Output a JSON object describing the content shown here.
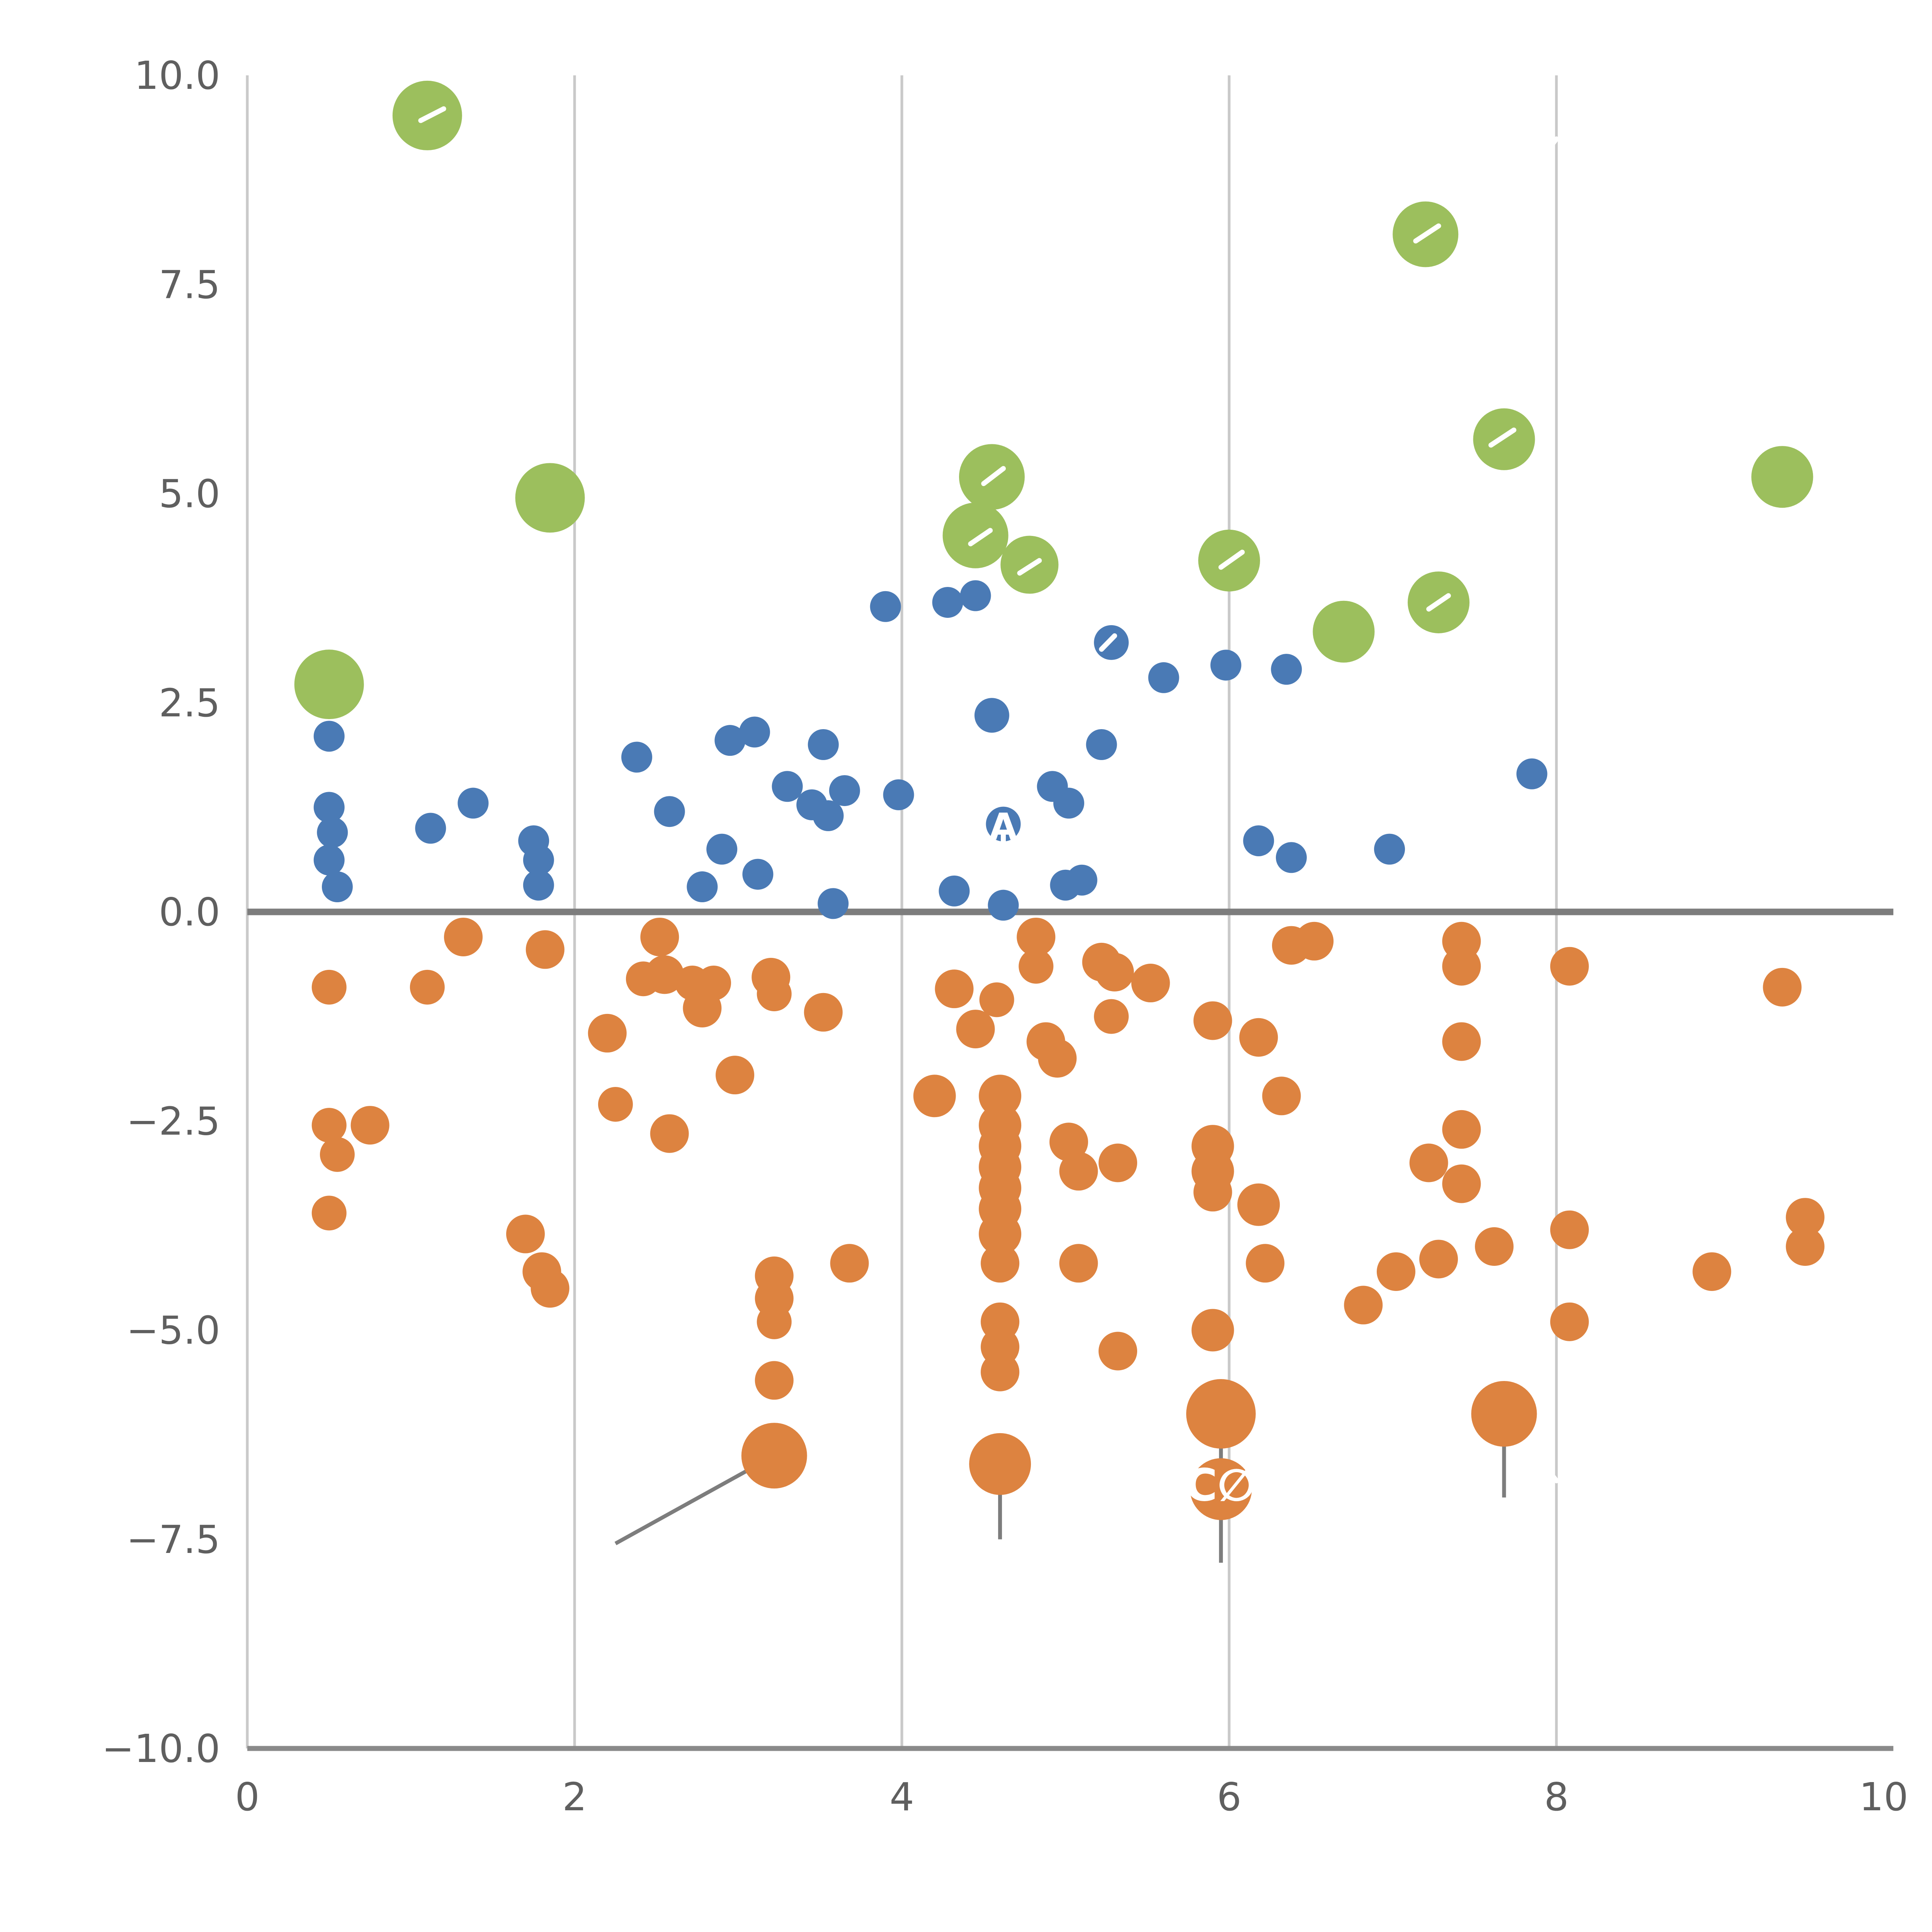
{
  "figure": {
    "background": "#ffffff"
  },
  "chart_data": {
    "type": "scatter",
    "title": "",
    "xlabel": "",
    "ylabel": "",
    "xlim": [
      0,
      10
    ],
    "ylim": [
      -10,
      10
    ],
    "grid": {
      "vertical_x": [
        2,
        4,
        6,
        8
      ],
      "color": "#c9c9c9",
      "left_spine_color": "#c9c9c9",
      "axis_color": "#8a8a8a",
      "tick_label_color": "#5f5f5f"
    },
    "zero_line": {
      "y": 0,
      "color": "#7d7d7d"
    },
    "x_ticks": [
      {
        "value": 0,
        "label": "0"
      },
      {
        "value": 2,
        "label": "2"
      },
      {
        "value": 4,
        "label": "4"
      },
      {
        "value": 6,
        "label": "6"
      },
      {
        "value": 8,
        "label": "8"
      },
      {
        "value": 10,
        "label": "10"
      }
    ],
    "y_ticks": [
      {
        "value": 10,
        "label": "10.0"
      },
      {
        "value": 7.5,
        "label": "7.5"
      },
      {
        "value": 5,
        "label": "5.0"
      },
      {
        "value": 2.5,
        "label": "2.5"
      },
      {
        "value": 0,
        "label": "0.0"
      },
      {
        "value": -2.5,
        "label": "−2.5"
      },
      {
        "value": -5,
        "label": "−5.0"
      },
      {
        "value": -7.5,
        "label": "−7.5"
      },
      {
        "value": -10,
        "label": "−10.0"
      }
    ],
    "series": [
      {
        "name": "green-bubbles",
        "color": "#9cbf5d",
        "points": [
          [
            1.1,
            9.52,
            18
          ],
          [
            1.85,
            4.95,
            18
          ],
          [
            0.5,
            2.72,
            18
          ],
          [
            4.55,
            5.2,
            17
          ],
          [
            4.45,
            4.5,
            17
          ],
          [
            4.78,
            4.15,
            15
          ],
          [
            6.0,
            4.2,
            16
          ],
          [
            6.7,
            3.35,
            16
          ],
          [
            7.2,
            8.1,
            17
          ],
          [
            7.28,
            3.7,
            16
          ],
          [
            7.68,
            5.65,
            16
          ],
          [
            9.38,
            5.2,
            16
          ]
        ]
      },
      {
        "name": "blue-dots",
        "color": "#4a7ab5",
        "points": [
          [
            0.5,
            2.1,
            8
          ],
          [
            0.5,
            1.25,
            8
          ],
          [
            0.52,
            0.95,
            8
          ],
          [
            0.5,
            0.62,
            8
          ],
          [
            0.55,
            0.3,
            8
          ],
          [
            1.12,
            1.0,
            8
          ],
          [
            1.38,
            1.3,
            8
          ],
          [
            1.75,
            0.85,
            8
          ],
          [
            1.78,
            0.62,
            8
          ],
          [
            1.78,
            0.32,
            8
          ],
          [
            2.38,
            1.85,
            8
          ],
          [
            2.58,
            1.2,
            8
          ],
          [
            2.78,
            0.3,
            8
          ],
          [
            2.9,
            0.75,
            8
          ],
          [
            2.95,
            2.05,
            8
          ],
          [
            3.1,
            2.15,
            8
          ],
          [
            3.12,
            0.45,
            8
          ],
          [
            3.3,
            1.5,
            8
          ],
          [
            3.45,
            1.28,
            8
          ],
          [
            3.52,
            2.0,
            8
          ],
          [
            3.55,
            1.15,
            8
          ],
          [
            3.58,
            0.1,
            8
          ],
          [
            3.65,
            1.45,
            8
          ],
          [
            3.9,
            3.65,
            8
          ],
          [
            3.98,
            1.4,
            8
          ],
          [
            4.28,
            3.7,
            8
          ],
          [
            4.32,
            0.25,
            8
          ],
          [
            4.45,
            3.78,
            8
          ],
          [
            4.55,
            2.35,
            9
          ],
          [
            4.62,
            1.05,
            9
          ],
          [
            4.62,
            0.08,
            8
          ],
          [
            4.92,
            1.5,
            8
          ],
          [
            5.02,
            1.3,
            8
          ],
          [
            5.0,
            0.32,
            8
          ],
          [
            5.1,
            0.38,
            8
          ],
          [
            5.22,
            2.0,
            8
          ],
          [
            5.28,
            3.22,
            9
          ],
          [
            5.6,
            2.8,
            8
          ],
          [
            5.98,
            2.95,
            8
          ],
          [
            6.18,
            0.85,
            8
          ],
          [
            6.35,
            2.9,
            8
          ],
          [
            6.38,
            0.65,
            8
          ],
          [
            6.98,
            0.75,
            8
          ],
          [
            7.85,
            1.65,
            8
          ]
        ]
      },
      {
        "name": "orange-dots",
        "color": "#dd8340",
        "points": [
          [
            0.5,
            -0.9,
            9
          ],
          [
            0.5,
            -2.55,
            9
          ],
          [
            0.55,
            -2.9,
            9
          ],
          [
            0.5,
            -3.6,
            9
          ],
          [
            0.75,
            -2.55,
            10
          ],
          [
            1.1,
            -0.9,
            9
          ],
          [
            1.32,
            -0.3,
            10
          ],
          [
            1.7,
            -3.85,
            10
          ],
          [
            1.82,
            -0.45,
            10
          ],
          [
            1.8,
            -4.3,
            10
          ],
          [
            1.85,
            -4.5,
            10
          ],
          [
            2.2,
            -1.45,
            10
          ],
          [
            2.25,
            -2.3,
            9
          ],
          [
            2.42,
            -0.8,
            9
          ],
          [
            2.52,
            -0.3,
            10
          ],
          [
            2.55,
            -0.75,
            10
          ],
          [
            2.58,
            -2.65,
            10
          ],
          [
            2.72,
            -0.85,
            9
          ],
          [
            2.78,
            -1.15,
            10
          ],
          [
            2.85,
            -0.85,
            9
          ],
          [
            2.98,
            -1.95,
            10
          ],
          [
            3.2,
            -0.78,
            10
          ],
          [
            3.22,
            -0.98,
            9
          ],
          [
            3.22,
            -4.35,
            10
          ],
          [
            3.22,
            -4.62,
            10
          ],
          [
            3.22,
            -4.9,
            9
          ],
          [
            3.22,
            -5.6,
            10
          ],
          [
            3.22,
            -6.5,
            17
          ],
          [
            3.52,
            -1.2,
            10
          ],
          [
            3.68,
            -4.2,
            10
          ],
          [
            4.2,
            -2.2,
            11
          ],
          [
            4.32,
            -0.92,
            10
          ],
          [
            4.45,
            -1.4,
            10
          ],
          [
            4.58,
            -1.05,
            9
          ],
          [
            4.6,
            -2.2,
            11
          ],
          [
            4.6,
            -2.55,
            11
          ],
          [
            4.6,
            -2.8,
            11
          ],
          [
            4.6,
            -3.05,
            11
          ],
          [
            4.6,
            -3.3,
            11
          ],
          [
            4.6,
            -3.55,
            11
          ],
          [
            4.6,
            -3.85,
            11
          ],
          [
            4.6,
            -4.2,
            10
          ],
          [
            4.6,
            -4.9,
            10
          ],
          [
            4.6,
            -5.2,
            10
          ],
          [
            4.6,
            -5.5,
            10
          ],
          [
            4.6,
            -6.6,
            16
          ],
          [
            4.82,
            -0.3,
            10
          ],
          [
            4.82,
            -0.65,
            9
          ],
          [
            4.88,
            -1.55,
            10
          ],
          [
            4.95,
            -1.75,
            10
          ],
          [
            5.02,
            -2.75,
            10
          ],
          [
            5.08,
            -3.1,
            10
          ],
          [
            5.08,
            -4.2,
            10
          ],
          [
            5.22,
            -0.6,
            10
          ],
          [
            5.3,
            -0.72,
            10
          ],
          [
            5.28,
            -1.25,
            9
          ],
          [
            5.32,
            -3.0,
            10
          ],
          [
            5.32,
            -5.25,
            10
          ],
          [
            5.52,
            -0.85,
            10
          ],
          [
            5.9,
            -1.3,
            10
          ],
          [
            5.9,
            -2.8,
            11
          ],
          [
            5.9,
            -3.1,
            11
          ],
          [
            5.9,
            -3.35,
            10
          ],
          [
            5.9,
            -5.0,
            11
          ],
          [
            5.95,
            -6.0,
            18
          ],
          [
            5.95,
            -6.9,
            16
          ],
          [
            6.18,
            -1.5,
            10
          ],
          [
            6.18,
            -3.5,
            11
          ],
          [
            6.22,
            -4.2,
            10
          ],
          [
            6.32,
            -2.2,
            10
          ],
          [
            6.38,
            -0.4,
            10
          ],
          [
            6.52,
            -0.35,
            10
          ],
          [
            6.82,
            -4.7,
            10
          ],
          [
            7.02,
            -4.3,
            10
          ],
          [
            7.22,
            -3.0,
            10
          ],
          [
            7.28,
            -4.15,
            10
          ],
          [
            7.42,
            -0.35,
            10
          ],
          [
            7.42,
            -0.65,
            10
          ],
          [
            7.42,
            -1.55,
            10
          ],
          [
            7.42,
            -2.6,
            10
          ],
          [
            7.42,
            -3.25,
            10
          ],
          [
            7.62,
            -4.0,
            10
          ],
          [
            7.68,
            -6.0,
            17
          ],
          [
            8.08,
            -0.65,
            10
          ],
          [
            8.08,
            -3.8,
            10
          ],
          [
            8.08,
            -4.9,
            10
          ],
          [
            8.95,
            -4.3,
            10
          ],
          [
            9.38,
            -0.9,
            10
          ],
          [
            9.52,
            -3.65,
            10
          ],
          [
            9.52,
            -4.0,
            10
          ]
        ]
      }
    ],
    "annotations": {
      "leader_line_color": "#7d7d7d",
      "leader_lines": [
        {
          "x1": 2.25,
          "y1": -7.55,
          "x2": 3.22,
          "y2": -6.5
        },
        {
          "x1": 4.6,
          "y1": -6.6,
          "x2": 4.6,
          "y2": -7.5
        },
        {
          "x1": 5.95,
          "y1": -6.0,
          "x2": 5.95,
          "y2": -7.78
        },
        {
          "x1": 7.68,
          "y1": -6.0,
          "x2": 7.68,
          "y2": -7.0
        }
      ],
      "white_marks": [
        [
          1.06,
          9.46,
          1.2,
          9.6
        ],
        [
          7.14,
          8.02,
          7.28,
          8.2
        ],
        [
          7.6,
          5.58,
          7.74,
          5.76
        ],
        [
          4.5,
          5.12,
          4.62,
          5.3
        ],
        [
          4.42,
          4.4,
          4.54,
          4.56
        ],
        [
          4.72,
          4.05,
          4.84,
          4.2
        ],
        [
          5.95,
          4.12,
          6.08,
          4.3
        ],
        [
          7.22,
          3.62,
          7.34,
          3.78
        ],
        [
          5.22,
          3.14,
          5.3,
          3.3
        ],
        [
          4.62,
          0.78,
          4.62,
          0.92
        ],
        [
          7.96,
          9.14,
          8.0,
          9.24
        ],
        [
          7.96,
          -6.7,
          8.0,
          -6.8
        ]
      ],
      "white_labels": [
        {
          "text": "A",
          "x": 4.62,
          "y": 1.02,
          "size": 19
        },
        {
          "text": "C∅X",
          "x": 6.05,
          "y": -6.85,
          "size": 23
        }
      ]
    }
  }
}
